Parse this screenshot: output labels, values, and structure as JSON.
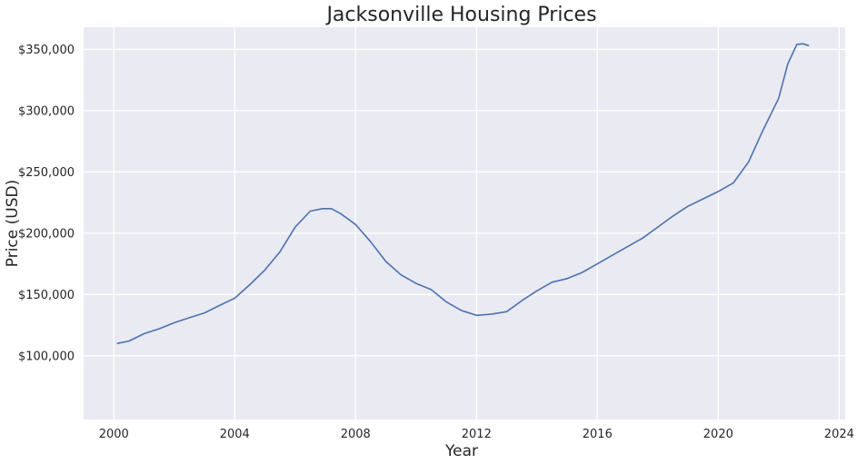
{
  "chart_data": {
    "type": "line",
    "title": "Jacksonville Housing Prices",
    "xlabel": "Year",
    "ylabel": "Price (USD)",
    "xlim": [
      1999.0,
      2024.2
    ],
    "ylim": [
      48000,
      368000
    ],
    "x_ticks": [
      2000,
      2004,
      2008,
      2012,
      2016,
      2020,
      2024
    ],
    "x_tick_labels": [
      "2000",
      "2004",
      "2008",
      "2012",
      "2016",
      "2020",
      "2024"
    ],
    "y_ticks": [
      100000,
      150000,
      200000,
      250000,
      300000,
      350000
    ],
    "y_tick_labels": [
      "$100,000",
      "$150,000",
      "$200,000",
      "$250,000",
      "$300,000",
      "$350,000"
    ],
    "grid": true,
    "background": "#eaeaf2",
    "grid_color": "#ffffff",
    "line_color": "#4c72b0",
    "series": [
      {
        "x": [
          2000.1,
          2000.5,
          2001.0,
          2001.5,
          2002.0,
          2002.5,
          2003.0,
          2003.5,
          2004.0,
          2004.5,
          2005.0,
          2005.5,
          2006.0,
          2006.5,
          2006.9,
          2007.2,
          2007.5,
          2008.0,
          2008.5,
          2009.0,
          2009.5,
          2010.0,
          2010.5,
          2011.0,
          2011.5,
          2012.0,
          2012.5,
          2013.0,
          2013.5,
          2014.0,
          2014.5,
          2015.0,
          2015.5,
          2016.0,
          2016.5,
          2017.0,
          2017.5,
          2018.0,
          2018.5,
          2019.0,
          2019.5,
          2020.0,
          2020.5,
          2021.0,
          2021.5,
          2022.0,
          2022.3,
          2022.6,
          2022.8,
          2023.0
        ],
        "y": [
          110000,
          112000,
          118000,
          122000,
          127000,
          131000,
          135000,
          141000,
          147000,
          158000,
          170000,
          185000,
          205000,
          218000,
          220000,
          220000,
          216000,
          207000,
          193000,
          177000,
          166000,
          159000,
          154000,
          144000,
          137000,
          133000,
          134000,
          136000,
          145000,
          153000,
          160000,
          163000,
          168000,
          175000,
          182000,
          189000,
          196000,
          205000,
          214000,
          222000,
          228000,
          234000,
          241000,
          258000,
          285000,
          310000,
          338000,
          354000,
          354500,
          353000
        ]
      }
    ]
  }
}
